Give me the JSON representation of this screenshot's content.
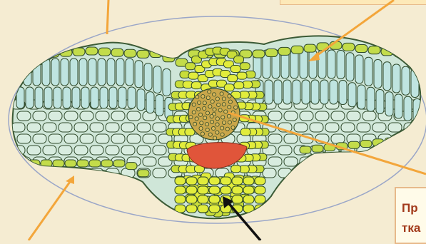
{
  "label": {
    "line1": "Пр",
    "line2": "тка"
  },
  "colors": {
    "background": "#f5ecd2",
    "epidermis": "#c3dc4a",
    "mesophyll": "#bfe4e0",
    "spongy": "#d8ecdf",
    "vein_sheath": "#e1ec3c",
    "xylem": "#c9a64a",
    "phloem": "#e0553a",
    "arrow_orange": "#f3a63b",
    "arrow_black": "#111111",
    "label_text": "#a23a1a"
  }
}
